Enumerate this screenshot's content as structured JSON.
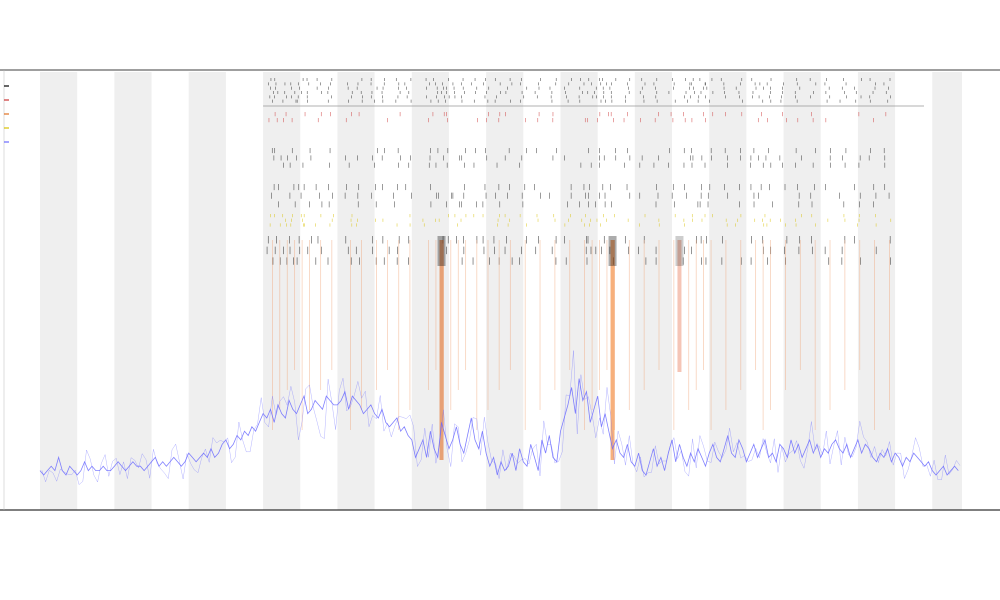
{
  "chart_data": {
    "type": "line",
    "title": "",
    "subtitle_1": "",
    "subtitle_2": "",
    "xlabel": "",
    "ylabel": "",
    "legend_placement": "top-left",
    "legend": [
      {
        "name": "",
        "color": "#000000"
      },
      {
        "name": "",
        "color": "#cc3333"
      },
      {
        "name": "",
        "color": "#e07020"
      },
      {
        "name": "",
        "color": "#d8c000"
      },
      {
        "name": "",
        "color": "#6a6aff"
      }
    ],
    "x_count": 248,
    "x_range": [
      0,
      248
    ],
    "y_range": [
      0,
      100
    ],
    "shaded_bands": [
      [
        0,
        10
      ],
      [
        20,
        30
      ],
      [
        40,
        50
      ],
      [
        60,
        70
      ],
      [
        80,
        90
      ],
      [
        100,
        110
      ],
      [
        120,
        130
      ],
      [
        140,
        150
      ],
      [
        160,
        170
      ],
      [
        180,
        190
      ],
      [
        200,
        210
      ],
      [
        220,
        230
      ],
      [
        240,
        248
      ]
    ],
    "series": [
      {
        "name": "",
        "color": "#6a6aff",
        "values": [
          9,
          8,
          9,
          10,
          9,
          12,
          9,
          8,
          10,
          9,
          8,
          9,
          11,
          9,
          10,
          9,
          9,
          10,
          9,
          9,
          10,
          11,
          10,
          9,
          10,
          11,
          10,
          10,
          9,
          10,
          11,
          12,
          10,
          11,
          10,
          11,
          12,
          11,
          10,
          11,
          13,
          12,
          11,
          12,
          13,
          12,
          14,
          12,
          13,
          15,
          16,
          14,
          15,
          17,
          16,
          18,
          17,
          19,
          18,
          20,
          22,
          21,
          23,
          20,
          24,
          22,
          21,
          25,
          23,
          22,
          24,
          26,
          22,
          23,
          25,
          24,
          23,
          26,
          25,
          24,
          24,
          25,
          27,
          23,
          26,
          25,
          24,
          22,
          23,
          24,
          22,
          21,
          23,
          20,
          19,
          20,
          21,
          18,
          19,
          17,
          16,
          12,
          14,
          16,
          12,
          18,
          14,
          12,
          20,
          17,
          14,
          16,
          19,
          15,
          13,
          17,
          21,
          16,
          14,
          18,
          13,
          10,
          12,
          8,
          11,
          9,
          10,
          13,
          9,
          14,
          11,
          10,
          15,
          12,
          9,
          16,
          13,
          17,
          12,
          11,
          18,
          21,
          24,
          28,
          22,
          30,
          25,
          27,
          20,
          23,
          26,
          19,
          22,
          18,
          14,
          16,
          13,
          12,
          15,
          11,
          10,
          13,
          9,
          8,
          11,
          14,
          10,
          12,
          9,
          13,
          16,
          11,
          15,
          12,
          10,
          13,
          11,
          14,
          12,
          10,
          13,
          15,
          12,
          11,
          14,
          17,
          13,
          12,
          16,
          14,
          11,
          13,
          15,
          12,
          14,
          16,
          12,
          13,
          11,
          15,
          14,
          12,
          16,
          13,
          15,
          12,
          14,
          16,
          13,
          15,
          12,
          14,
          13,
          15,
          16,
          14,
          13,
          15,
          12,
          14,
          16,
          13,
          15,
          14,
          12,
          11,
          13,
          12,
          14,
          11,
          13,
          12,
          10,
          12,
          11,
          13,
          12,
          11,
          10,
          11,
          9,
          8,
          9,
          10,
          8,
          9,
          10,
          9
        ]
      }
    ],
    "event_strips": [
      {
        "name": "",
        "color": "#222222",
        "density": 0.7
      },
      {
        "name": "",
        "color": "#cc3333",
        "density": 0.35
      },
      {
        "name": "",
        "color": "#222222",
        "density": 0.55
      },
      {
        "name": "",
        "color": "#222222",
        "density": 0.5
      },
      {
        "name": "",
        "color": "#d8c000",
        "density": 0.45
      },
      {
        "name": "",
        "color": "#111111",
        "density": 0.5
      }
    ],
    "event_positions": [
      62,
      64,
      66,
      68,
      70,
      72,
      75,
      78,
      83,
      86,
      90,
      93,
      96,
      99,
      104,
      106,
      108,
      110,
      112,
      114,
      117,
      120,
      123,
      126,
      130,
      134,
      138,
      142,
      146,
      148,
      150,
      152,
      154,
      158,
      162,
      166,
      170,
      174,
      176,
      178,
      180,
      184,
      188,
      192,
      194,
      196,
      200,
      204,
      208,
      212,
      216,
      220,
      224,
      228
    ],
    "intensity_events": [
      {
        "x": 108,
        "color": "#e06010",
        "strength": 1.0
      },
      {
        "x": 154,
        "color": "#f07010",
        "strength": 1.0
      },
      {
        "x": 172,
        "color": "#e05020",
        "strength": 0.6
      }
    ]
  }
}
